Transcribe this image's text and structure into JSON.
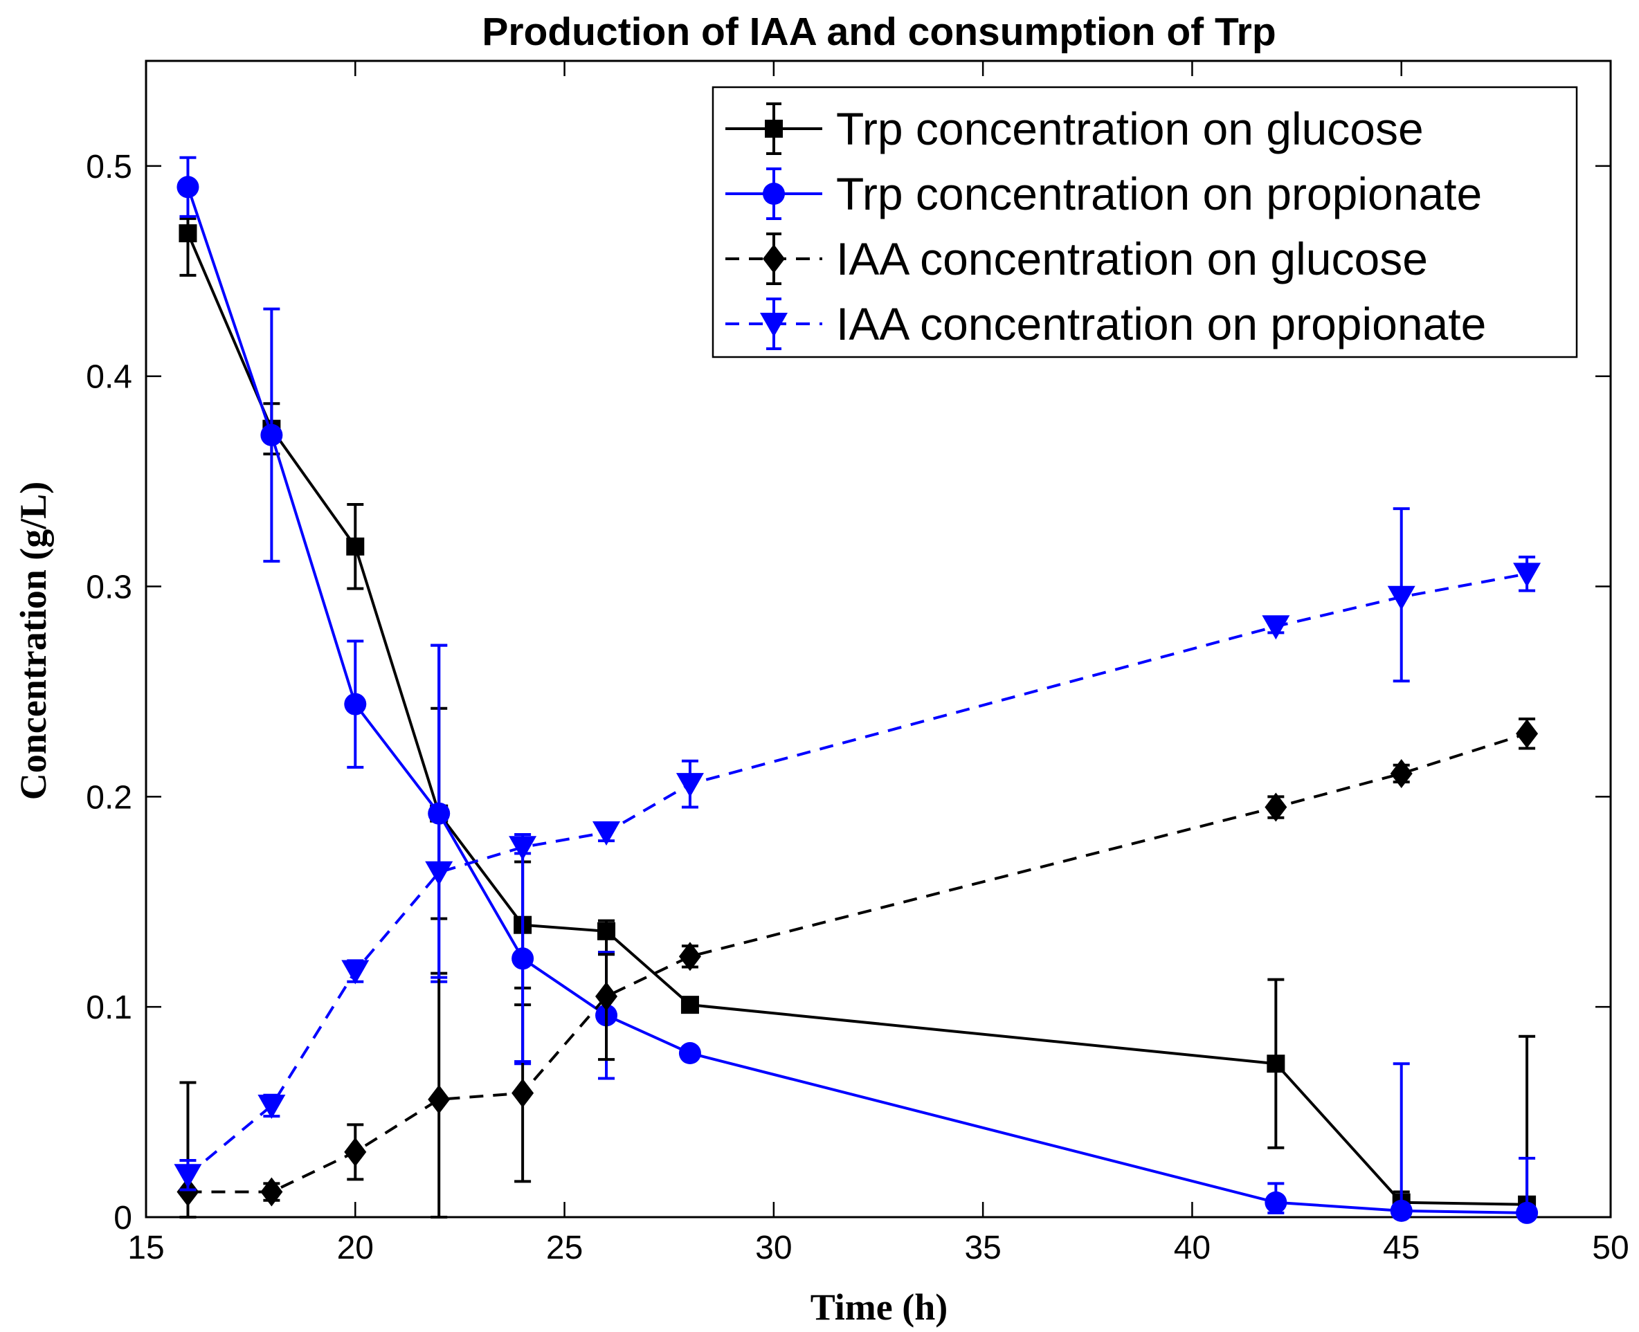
{
  "chart_data": {
    "type": "line",
    "title": "Production of IAA and consumption of Trp",
    "xlabel": "Time (h)",
    "ylabel": "Concentration (g/L)",
    "xlim": [
      15,
      50
    ],
    "ylim": [
      0,
      0.55
    ],
    "xticks": [
      15,
      20,
      25,
      30,
      35,
      40,
      45,
      50
    ],
    "yticks": [
      0,
      0.1,
      0.2,
      0.3,
      0.4,
      0.5
    ],
    "xtick_labels": [
      "15",
      "20",
      "25",
      "30",
      "35",
      "40",
      "45",
      "50"
    ],
    "ytick_labels": [
      "0",
      "0.1",
      "0.2",
      "0.3",
      "0.4",
      "0.5"
    ],
    "grid": false,
    "legend_position": "top-right",
    "series": [
      {
        "name": "Trp concentration on glucose",
        "color": "#000000",
        "line_style": "solid",
        "marker": "square",
        "x": [
          16,
          18,
          20,
          22,
          24,
          26,
          28,
          42,
          45,
          48
        ],
        "y": [
          0.468,
          0.375,
          0.319,
          0.192,
          0.139,
          0.136,
          0.101,
          0.073,
          0.007,
          0.006
        ],
        "err_low": [
          0.02,
          0.012,
          0.02,
          0.05,
          0.03,
          0.01,
          0.002,
          0.04,
          0.005,
          0.006
        ],
        "err_high": [
          0.007,
          0.012,
          0.02,
          0.05,
          0.03,
          0.005,
          0.002,
          0.04,
          0.005,
          0.08
        ]
      },
      {
        "name": "Trp concentration on propionate",
        "color": "#0000ff",
        "line_style": "solid",
        "marker": "circle",
        "x": [
          16,
          18,
          20,
          22,
          24,
          26,
          28,
          42,
          45,
          48
        ],
        "y": [
          0.49,
          0.372,
          0.244,
          0.192,
          0.123,
          0.096,
          0.078,
          0.007,
          0.003,
          0.002
        ],
        "err_low": [
          0.014,
          0.06,
          0.03,
          0.08,
          0.05,
          0.03,
          0.002,
          0.005,
          0.003,
          0.002
        ],
        "err_high": [
          0.014,
          0.06,
          0.03,
          0.08,
          0.05,
          0.03,
          0.002,
          0.009,
          0.07,
          0.026
        ]
      },
      {
        "name": "IAA concentration on glucose",
        "color": "#000000",
        "line_style": "dashed",
        "marker": "diamond",
        "x": [
          16,
          18,
          20,
          22,
          24,
          26,
          28,
          42,
          45,
          48
        ],
        "y": [
          0.012,
          0.012,
          0.031,
          0.056,
          0.059,
          0.105,
          0.124,
          0.195,
          0.211,
          0.23
        ],
        "err_low": [
          0.012,
          0.004,
          0.013,
          0.056,
          0.042,
          0.03,
          0.005,
          0.005,
          0.004,
          0.007
        ],
        "err_high": [
          0.052,
          0.004,
          0.013,
          0.06,
          0.042,
          0.02,
          0.005,
          0.005,
          0.004,
          0.007
        ]
      },
      {
        "name": "IAA concentration on propionate",
        "color": "#0000ff",
        "line_style": "dashed",
        "marker": "triangle-down",
        "x": [
          16,
          18,
          20,
          22,
          24,
          26,
          28,
          42,
          45,
          48
        ],
        "y": [
          0.02,
          0.053,
          0.117,
          0.164,
          0.176,
          0.183,
          0.206,
          0.281,
          0.295,
          0.306
        ],
        "err_low": [
          0.007,
          0.005,
          0.005,
          0.05,
          0.102,
          0.004,
          0.011,
          0.003,
          0.04,
          0.008
        ],
        "err_high": [
          0.007,
          0.005,
          0.005,
          0.108,
          0.006,
          0.004,
          0.011,
          0.003,
          0.042,
          0.008
        ]
      }
    ]
  }
}
